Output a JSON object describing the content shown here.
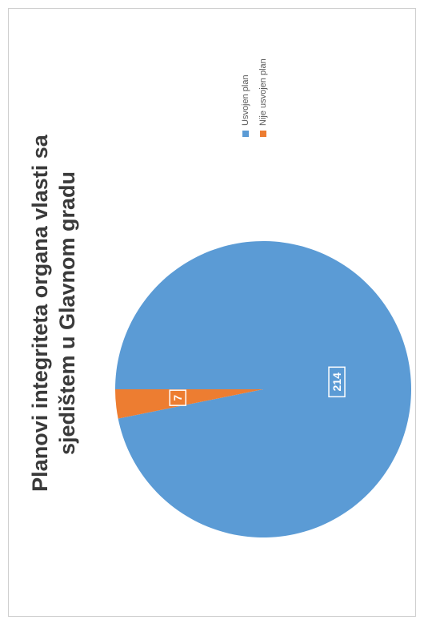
{
  "chart_data": {
    "type": "pie",
    "title_lines": [
      "Planovi integriteta organa vlasti sa",
      "sjedištem u Glavnom gradu"
    ],
    "series": [
      {
        "name": "Usvojen plan",
        "value": 214,
        "color": "#5b9bd5"
      },
      {
        "name": "Nije usvojen plan",
        "value": 7,
        "color": "#ed7d31"
      }
    ],
    "data_labels": [
      "214",
      "7"
    ],
    "legend_position": "right"
  }
}
